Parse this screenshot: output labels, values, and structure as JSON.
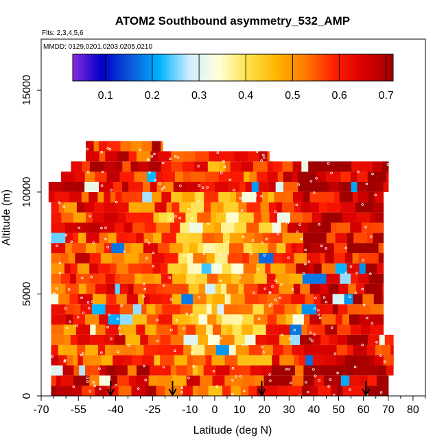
{
  "chart_data": {
    "type": "heatmap",
    "title": "ATOM2 Southbound asymmetry_532_AMP",
    "subtitle_flights": "Flts: 2,3,4,5,6",
    "subtitle_dates": "MMDD: 0129,0201,0203,0205,0210",
    "xlabel": "Latitude (deg N)",
    "ylabel": "Altitude (m)",
    "xlim": [
      -70,
      85
    ],
    "ylim": [
      0,
      17500
    ],
    "x_ticks": [
      -70,
      -55,
      -40,
      -25,
      -10,
      0,
      10,
      20,
      30,
      40,
      50,
      60,
      70,
      80
    ],
    "y_ticks": [
      0,
      5000,
      10000,
      15000
    ],
    "colorbar": {
      "range": [
        0.03,
        0.715
      ],
      "ticks": [
        0.1,
        0.2,
        0.3,
        0.4,
        0.5,
        0.6,
        0.7
      ],
      "colors": [
        "#8a2be2",
        "#0000c8",
        "#0b5ad8",
        "#00b4ff",
        "#cfeeff",
        "#ffffd8",
        "#ffe24a",
        "#ffb400",
        "#ff7a00",
        "#ff1e00",
        "#d80000",
        "#a00000"
      ]
    },
    "arrows_latitude": [
      -42,
      -17,
      19,
      61
    ],
    "grid": false,
    "legend": "none"
  }
}
